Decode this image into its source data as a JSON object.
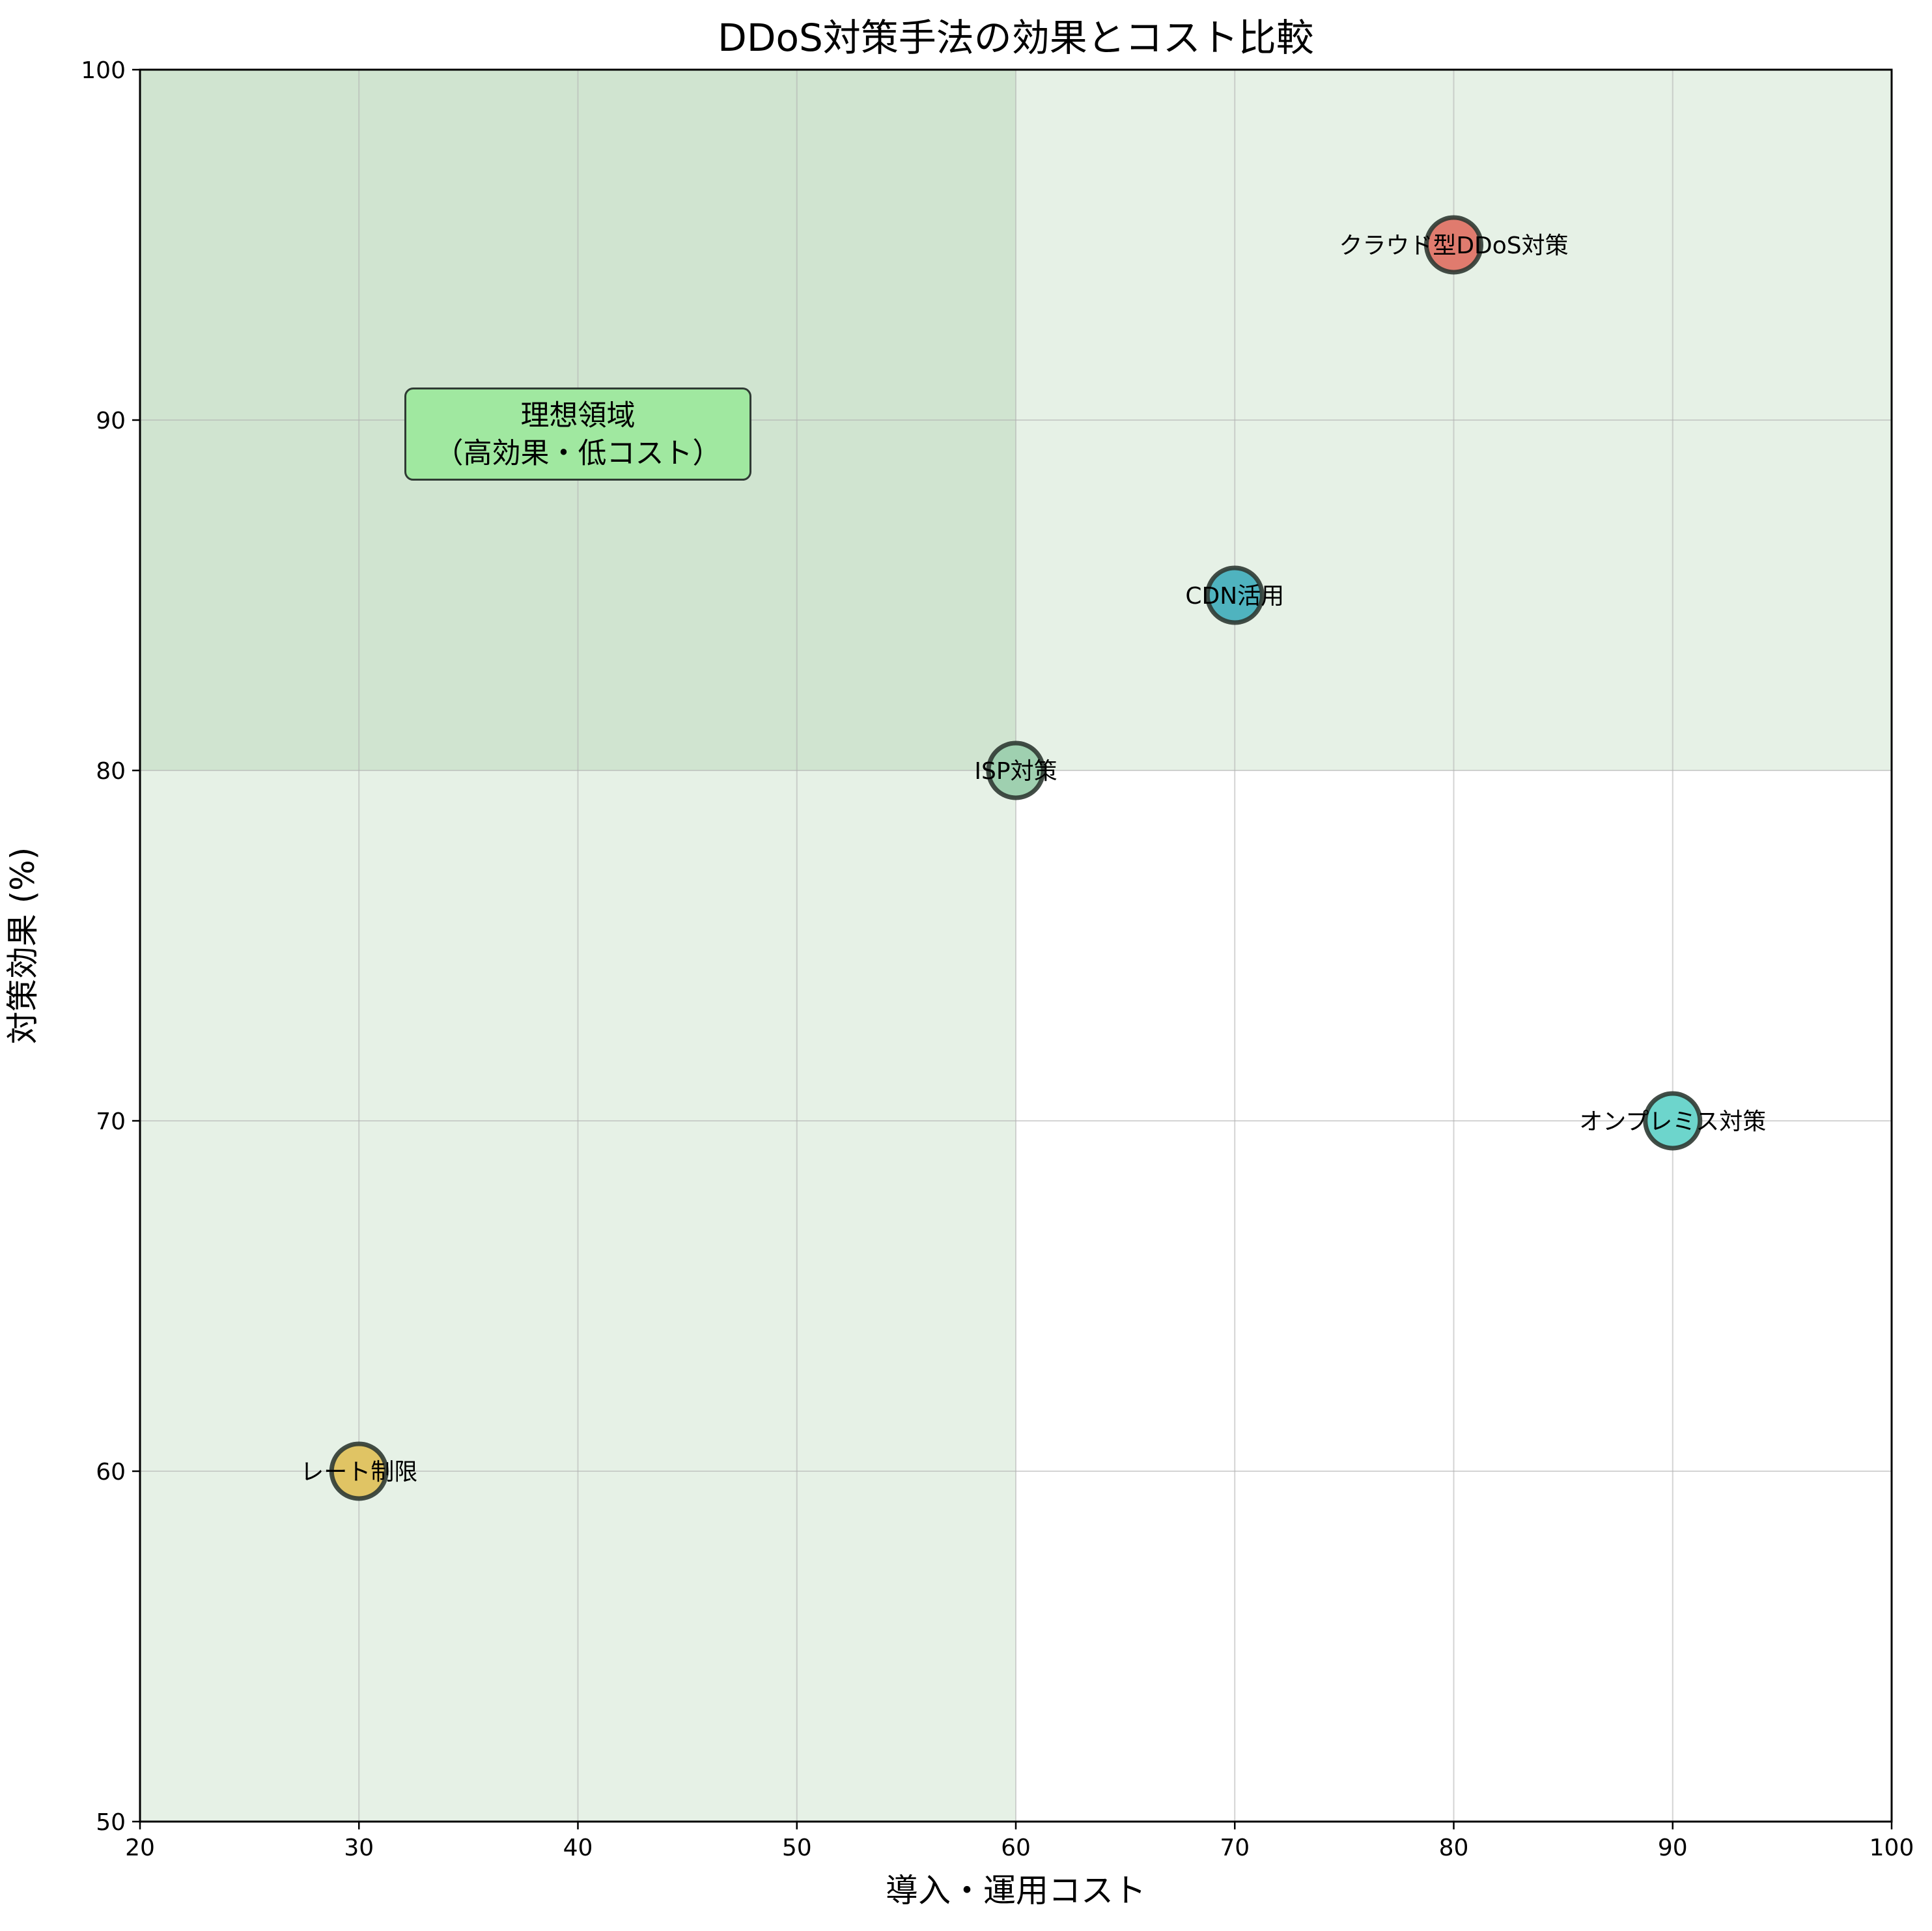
{
  "chart_data": {
    "type": "scatter",
    "title": "DDoS対策手法の効果とコスト比較",
    "xlabel": "導入・運用コスト",
    "ylabel": "対策効果 (%)",
    "xlim": [
      20,
      100
    ],
    "ylim": [
      50,
      100
    ],
    "xticks": [
      20,
      30,
      40,
      50,
      60,
      70,
      80,
      90,
      100
    ],
    "yticks": [
      50,
      60,
      70,
      80,
      90,
      100
    ],
    "grid": true,
    "points": [
      {
        "label": "クラウド型DDoS対策",
        "x": 80,
        "y": 95,
        "color": "#e07b6e"
      },
      {
        "label": "CDN活用",
        "x": 70,
        "y": 85,
        "color": "#4fb3bf"
      },
      {
        "label": "ISP対策",
        "x": 60,
        "y": 80,
        "color": "#9fd0b0"
      },
      {
        "label": "オンプレミス対策",
        "x": 90,
        "y": 70,
        "color": "#6dd5cc"
      },
      {
        "label": "レート制限",
        "x": 30,
        "y": 60,
        "color": "#e0c464"
      }
    ],
    "shaded_regions": [
      {
        "x_range": [
          20,
          60
        ],
        "y_range": [
          50,
          100
        ],
        "color": "#2e8b2e",
        "opacity": 0.12
      },
      {
        "x_range": [
          20,
          100
        ],
        "y_range": [
          80,
          100
        ],
        "color": "#2e8b2e",
        "opacity": 0.12
      }
    ],
    "annotation": {
      "lines": [
        "理想領域",
        "（高効果・低コスト）"
      ],
      "x": 40,
      "y": 89.6,
      "box_color": "#a0e8a0"
    }
  }
}
